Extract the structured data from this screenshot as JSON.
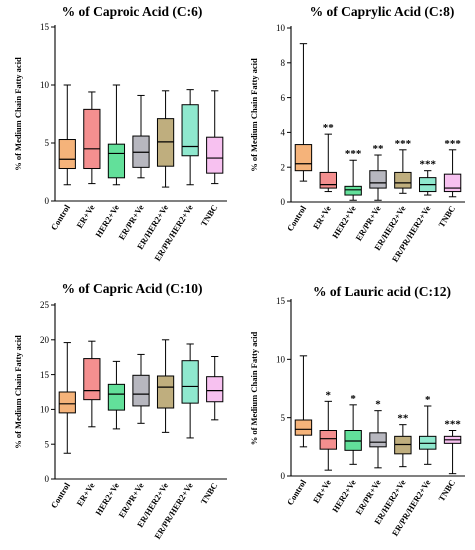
{
  "chart_data": [
    {
      "type": "boxplot",
      "title": "% of Caproic Acid (C:6)",
      "ylabel": "% of Medium Chain Fatty acid",
      "ylim": [
        0,
        15
      ],
      "yticks": [
        0,
        5,
        10,
        15
      ],
      "categories": [
        "Control",
        "ER+Ve",
        "HER2+Ve",
        "ER/PR+Ve",
        "ER/HER2+Ve",
        "ER/PR/HER2+Ve",
        "TNBC"
      ],
      "colors": [
        "#f5b37a",
        "#f48f8f",
        "#62e09a",
        "#b7b7bf",
        "#bfae7e",
        "#8fe8ce",
        "#f7c1f0"
      ],
      "boxes": [
        {
          "min": 1.4,
          "q1": 2.8,
          "median": 3.6,
          "q3": 5.3,
          "max": 10.0
        },
        {
          "min": 1.5,
          "q1": 2.8,
          "median": 4.5,
          "q3": 7.9,
          "max": 9.4
        },
        {
          "min": 1.4,
          "q1": 2.0,
          "median": 4.1,
          "q3": 4.9,
          "max": 10.0
        },
        {
          "min": 2.0,
          "q1": 2.9,
          "median": 4.2,
          "q3": 5.6,
          "max": 9.1
        },
        {
          "min": 1.2,
          "q1": 3.0,
          "median": 5.1,
          "q3": 7.1,
          "max": 9.5
        },
        {
          "min": 1.4,
          "q1": 3.9,
          "median": 4.7,
          "q3": 8.3,
          "max": 9.6
        },
        {
          "min": 1.5,
          "q1": 2.4,
          "median": 3.7,
          "q3": 5.5,
          "max": 9.5
        }
      ],
      "significance": [
        "",
        "",
        "",
        "",
        "",
        "",
        ""
      ]
    },
    {
      "type": "boxplot",
      "title": "% of Caprylic Acid (C:8)",
      "ylabel": "% of Medium Chain Fatty acid",
      "ylim": [
        0,
        10
      ],
      "yticks": [
        0,
        2,
        4,
        6,
        8,
        10
      ],
      "categories": [
        "Control",
        "ER+Ve",
        "HER2+Ve",
        "ER/PR+Ve",
        "ER/HER2+Ve",
        "ER/PR/HER2+Ve",
        "TNBC"
      ],
      "colors": [
        "#f5b37a",
        "#f48f8f",
        "#62e09a",
        "#b7b7bf",
        "#bfae7e",
        "#8fe8ce",
        "#f7c1f0"
      ],
      "boxes": [
        {
          "min": 1.2,
          "q1": 1.8,
          "median": 2.2,
          "q3": 3.3,
          "max": 9.1
        },
        {
          "min": 0.6,
          "q1": 0.8,
          "median": 1.0,
          "q3": 1.7,
          "max": 3.9
        },
        {
          "min": 0.1,
          "q1": 0.4,
          "median": 0.7,
          "q3": 0.9,
          "max": 2.4
        },
        {
          "min": 0.1,
          "q1": 0.8,
          "median": 1.1,
          "q3": 1.8,
          "max": 2.7
        },
        {
          "min": 0.5,
          "q1": 0.8,
          "median": 1.1,
          "q3": 1.7,
          "max": 3.0
        },
        {
          "min": 0.4,
          "q1": 0.6,
          "median": 1.0,
          "q3": 1.4,
          "max": 1.8
        },
        {
          "min": 0.3,
          "q1": 0.6,
          "median": 0.8,
          "q3": 1.6,
          "max": 3.0
        }
      ],
      "significance": [
        "",
        "**",
        "***",
        "**",
        "***",
        "***",
        "***"
      ]
    },
    {
      "type": "boxplot",
      "title": "% of Capric Acid (C:10)",
      "ylabel": "% of Medium Chain Fatty acid",
      "ylim": [
        0,
        25
      ],
      "yticks": [
        0,
        5,
        10,
        15,
        20,
        25
      ],
      "categories": [
        "Control",
        "ER+Ve",
        "HER2+Ve",
        "ER/PR+Ve",
        "ER/HER2+Ve",
        "ER/PR/HER2+Ve",
        "TNBC"
      ],
      "colors": [
        "#f5b37a",
        "#f48f8f",
        "#62e09a",
        "#b7b7bf",
        "#bfae7e",
        "#8fe8ce",
        "#f7c1f0"
      ],
      "boxes": [
        {
          "min": 3.7,
          "q1": 9.5,
          "median": 10.8,
          "q3": 12.5,
          "max": 19.6
        },
        {
          "min": 7.5,
          "q1": 11.4,
          "median": 12.7,
          "q3": 17.3,
          "max": 19.8
        },
        {
          "min": 7.2,
          "q1": 9.9,
          "median": 12.2,
          "q3": 13.6,
          "max": 16.9
        },
        {
          "min": 8.0,
          "q1": 10.5,
          "median": 12.2,
          "q3": 14.9,
          "max": 17.9
        },
        {
          "min": 6.7,
          "q1": 10.2,
          "median": 13.2,
          "q3": 14.8,
          "max": 20.0
        },
        {
          "min": 5.9,
          "q1": 10.9,
          "median": 13.3,
          "q3": 17.0,
          "max": 19.4
        },
        {
          "min": 8.5,
          "q1": 11.1,
          "median": 12.7,
          "q3": 14.7,
          "max": 17.6
        }
      ],
      "significance": [
        "",
        "",
        "",
        "",
        "",
        "",
        ""
      ]
    },
    {
      "type": "boxplot",
      "title": "% of Lauric acid (C:12)",
      "ylabel": "% of Medium Chain Fatty acid",
      "ylim": [
        0,
        15
      ],
      "yticks": [
        0,
        5,
        10,
        15
      ],
      "categories": [
        "Control",
        "ER+Ve",
        "HER2+Ve",
        "ER/PR+Ve",
        "ER/HER2+Ve",
        "ER/PR/HER2+Ve",
        "TNBC"
      ],
      "colors": [
        "#f5b37a",
        "#f48f8f",
        "#62e09a",
        "#b7b7bf",
        "#bfae7e",
        "#8fe8ce",
        "#f7c1f0"
      ],
      "boxes": [
        {
          "min": 2.5,
          "q1": 3.5,
          "median": 4.0,
          "q3": 4.8,
          "max": 10.3
        },
        {
          "min": 0.5,
          "q1": 2.3,
          "median": 3.2,
          "q3": 3.9,
          "max": 6.4
        },
        {
          "min": 1.0,
          "q1": 2.2,
          "median": 3.0,
          "q3": 3.9,
          "max": 6.1
        },
        {
          "min": 0.7,
          "q1": 2.5,
          "median": 2.9,
          "q3": 3.7,
          "max": 5.6
        },
        {
          "min": 0.8,
          "q1": 1.9,
          "median": 2.7,
          "q3": 3.4,
          "max": 4.4
        },
        {
          "min": 1.0,
          "q1": 2.3,
          "median": 2.8,
          "q3": 3.4,
          "max": 6.0
        },
        {
          "min": 0.2,
          "q1": 2.8,
          "median": 3.1,
          "q3": 3.4,
          "max": 3.9
        }
      ],
      "significance": [
        "",
        "*",
        "*",
        "*",
        "**",
        "*",
        "***"
      ]
    }
  ]
}
